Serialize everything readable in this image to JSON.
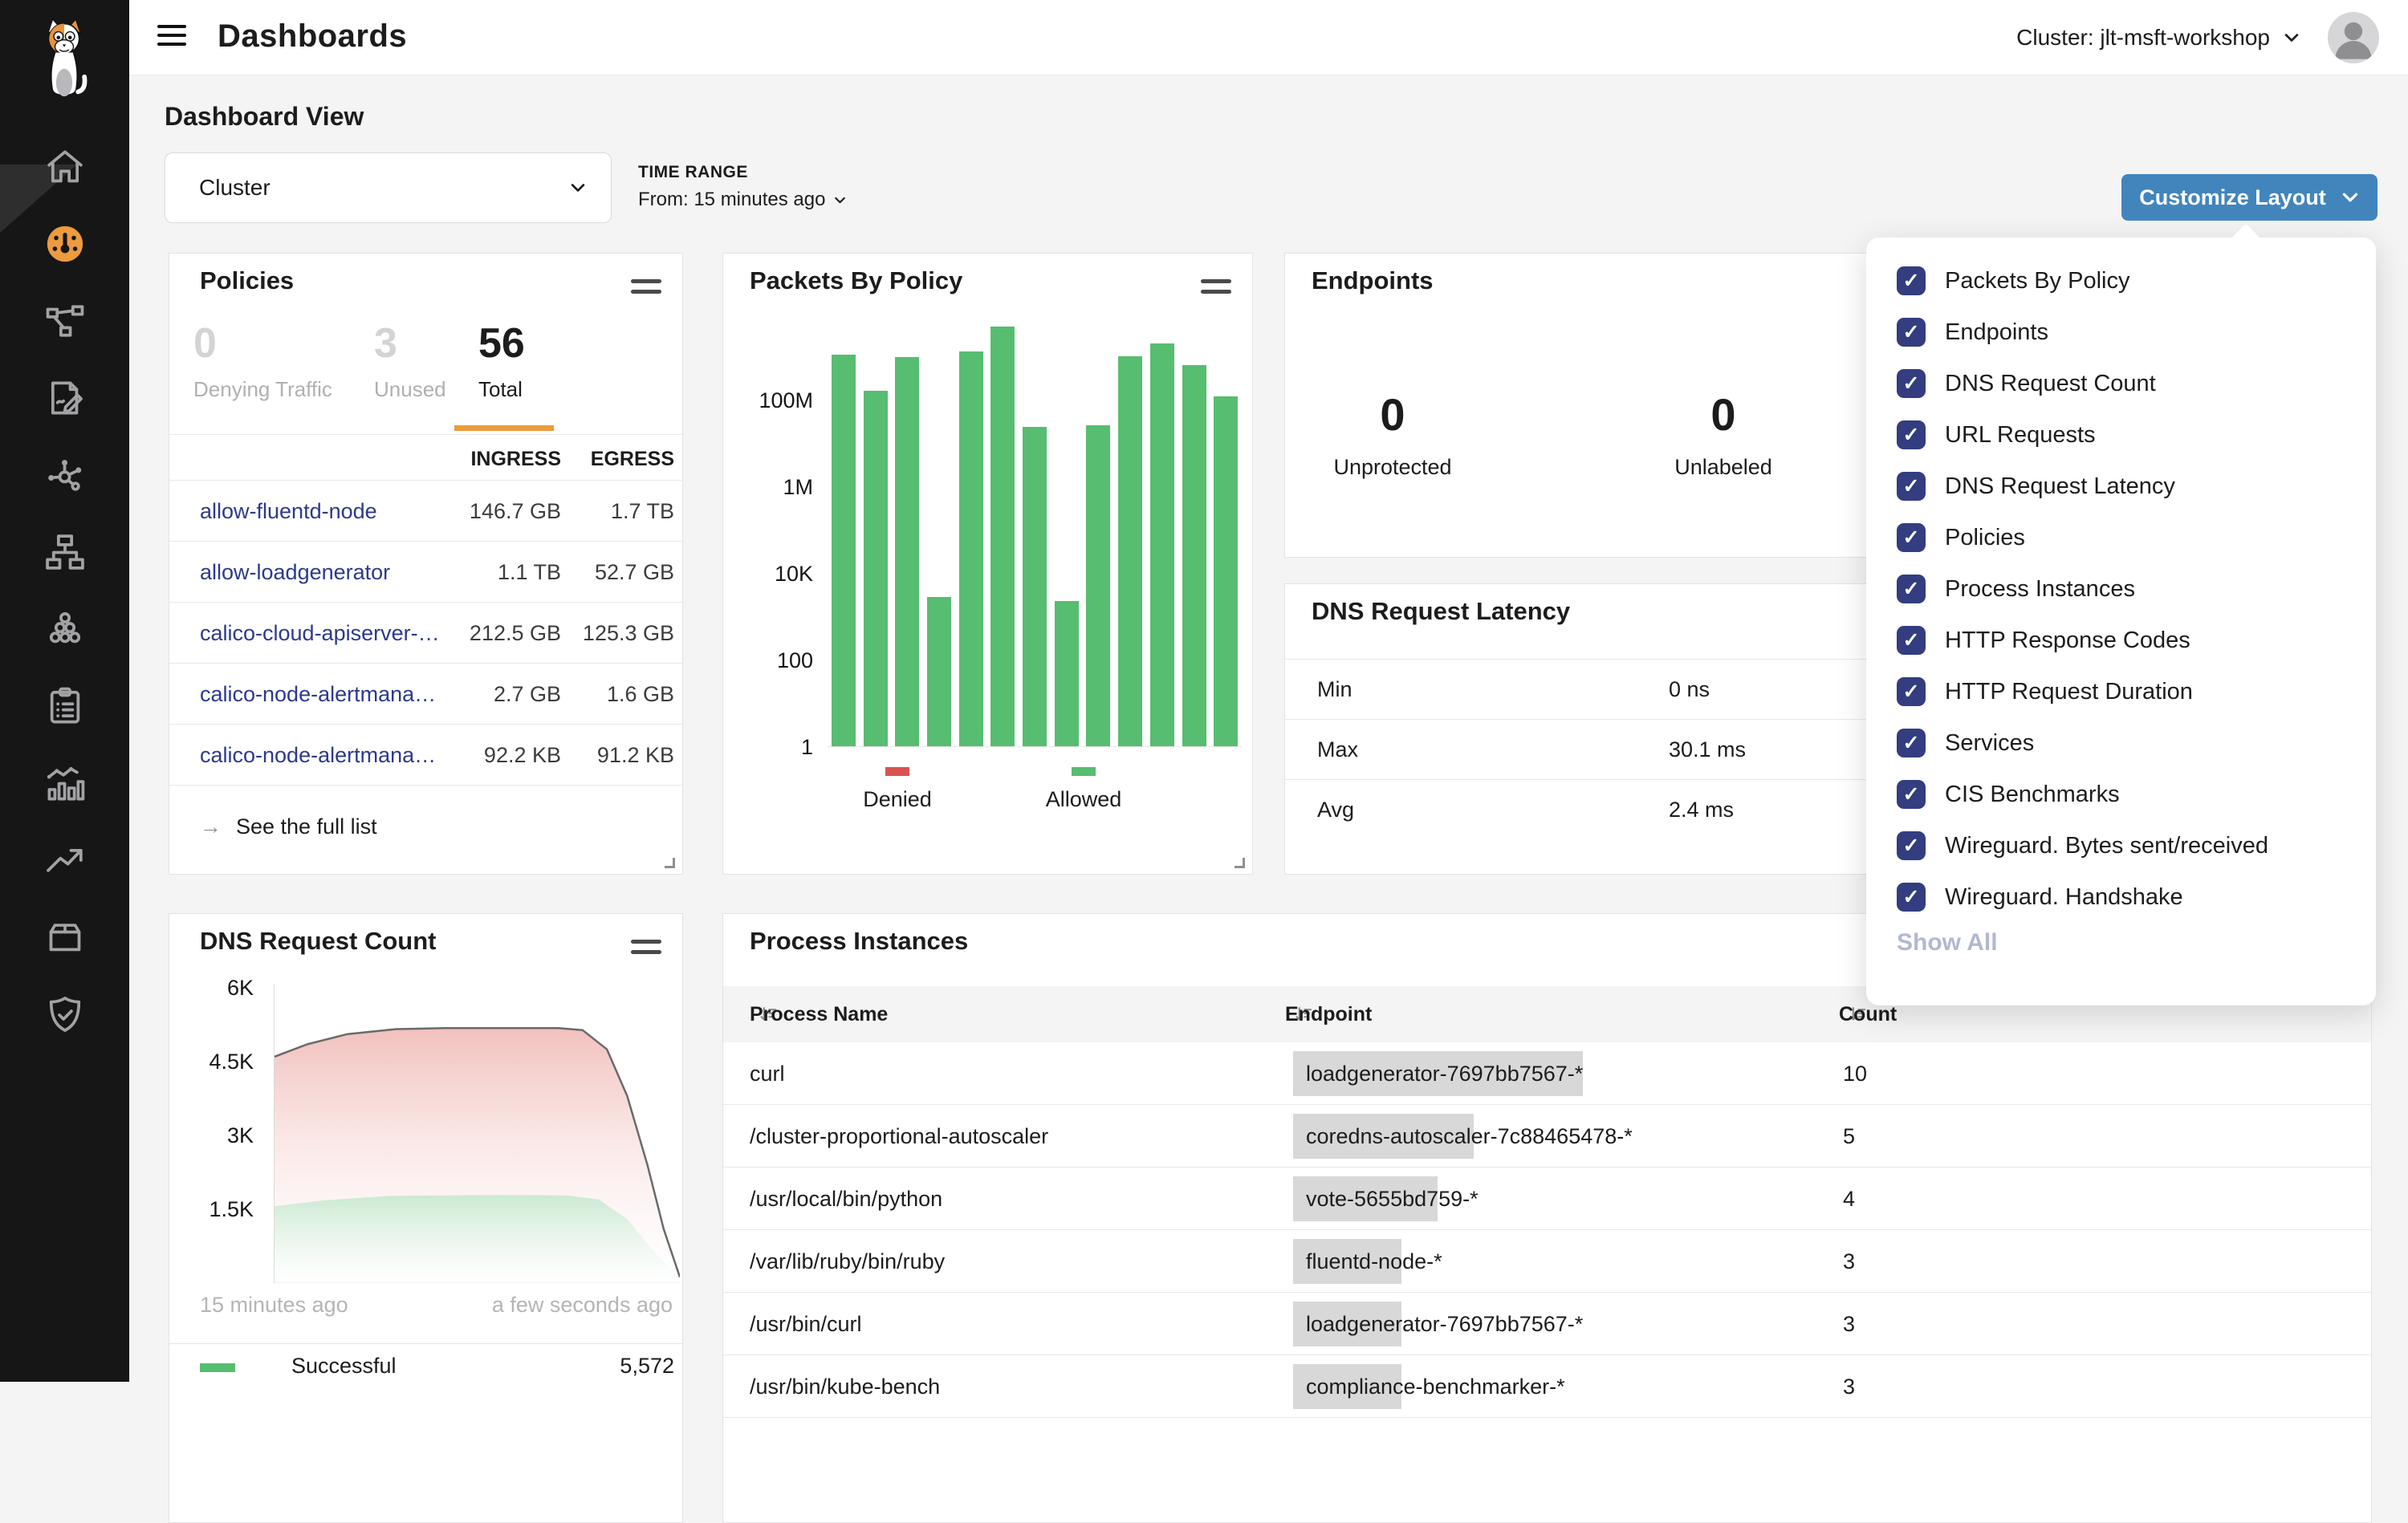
{
  "colors": {
    "accent_orange": "#ec9b3d",
    "button_blue": "#4285bd",
    "checkbox_navy": "#333d80",
    "link_navy": "#2c3a8c",
    "bar_green": "#57bd70",
    "denied_red": "#d9534f"
  },
  "header": {
    "title": "Dashboards",
    "cluster_label": "Cluster: jlt-msft-workshop"
  },
  "toolbar": {
    "section_title": "Dashboard View",
    "view_select_value": "Cluster",
    "time_range_label": "TIME RANGE",
    "time_range_value": "From: 15 minutes ago",
    "customize_button_label": "Customize Layout"
  },
  "sidebar": {
    "items": [
      {
        "icon": "home-icon",
        "active": false
      },
      {
        "icon": "dashboard-icon",
        "active": true
      },
      {
        "icon": "network-path-icon",
        "active": false
      },
      {
        "icon": "policy-edit-icon",
        "active": false
      },
      {
        "icon": "service-graph-icon",
        "active": false
      },
      {
        "icon": "network-tree-icon",
        "active": false
      },
      {
        "icon": "node-cluster-icon",
        "active": false
      },
      {
        "icon": "clipboard-list-icon",
        "active": false
      },
      {
        "icon": "metrics-chart-icon",
        "active": false
      },
      {
        "icon": "trending-up-icon",
        "active": false
      },
      {
        "icon": "package-icon",
        "active": false
      },
      {
        "icon": "shield-check-icon",
        "active": false
      }
    ]
  },
  "customize_menu": {
    "items": [
      "Packets By Policy",
      "Endpoints",
      "DNS Request Count",
      "URL Requests",
      "DNS Request Latency",
      "Policies",
      "Process Instances",
      "HTTP Response Codes",
      "HTTP Request Duration",
      "Services",
      "CIS Benchmarks",
      "Wireguard. Bytes sent/received",
      "Wireguard. Handshake"
    ],
    "show_all_label": "Show All"
  },
  "policies": {
    "title": "Policies",
    "stats": [
      {
        "value": "0",
        "label": "Denying Traffic",
        "muted": true,
        "active": false
      },
      {
        "value": "3",
        "label": "Unused",
        "muted": true,
        "active": false
      },
      {
        "value": "56",
        "label": "Total",
        "muted": false,
        "active": true
      }
    ],
    "columns": [
      "INGRESS",
      "EGRESS"
    ],
    "rows": [
      {
        "name": "allow-fluentd-node",
        "ingress": "146.7 GB",
        "egress": "1.7 TB"
      },
      {
        "name": "allow-loadgenerator",
        "ingress": "1.1 TB",
        "egress": "52.7 GB"
      },
      {
        "name": "calico-cloud-apiserver-…",
        "ingress": "212.5 GB",
        "egress": "125.3 GB"
      },
      {
        "name": "calico-node-alertmana…",
        "ingress": "2.7 GB",
        "egress": "1.6 GB"
      },
      {
        "name": "calico-node-alertmana…",
        "ingress": "92.2 KB",
        "egress": "91.2 KB"
      }
    ],
    "footer_link": "See the full list"
  },
  "endpoints": {
    "title": "Endpoints",
    "stats": [
      {
        "value": "0",
        "label": "Unprotected"
      },
      {
        "value": "0",
        "label": "Unlabeled"
      }
    ]
  },
  "dns_latency": {
    "title": "DNS Request Latency",
    "rows": [
      {
        "label": "Min",
        "value": "0 ns"
      },
      {
        "label": "Max",
        "value": "30.1 ms"
      },
      {
        "label": "Avg",
        "value": "2.4 ms"
      }
    ]
  },
  "dns_count": {
    "legend": [
      {
        "label": "Successful",
        "value": "5,572",
        "color": "#57bd70"
      }
    ]
  },
  "process_instances": {
    "title": "Process Instances",
    "columns": [
      "Process Name",
      "Endpoint",
      "Count"
    ],
    "rows": [
      {
        "process": "curl",
        "endpoint": "loadgenerator-7697bb7567-*",
        "count": 10
      },
      {
        "process": "/cluster-proportional-autoscaler",
        "endpoint": "coredns-autoscaler-7c88465478-*",
        "count": 5
      },
      {
        "process": "/usr/local/bin/python",
        "endpoint": "vote-5655bd759-*",
        "count": 4
      },
      {
        "process": "/var/lib/ruby/bin/ruby",
        "endpoint": "fluentd-node-*",
        "count": 3
      },
      {
        "process": "/usr/bin/curl",
        "endpoint": "loadgenerator-7697bb7567-*",
        "count": 3
      },
      {
        "process": "/usr/bin/kube-bench",
        "endpoint": "compliance-benchmarker-*",
        "count": 3
      }
    ]
  },
  "chart_data": [
    {
      "type": "bar",
      "title": "Packets By Policy",
      "scale": "log",
      "ylim": [
        1,
        10000000000
      ],
      "y_ticks": [
        "1",
        "100",
        "10K",
        "1M",
        "100M"
      ],
      "y_tick_decades": [
        0,
        2,
        4,
        6,
        8
      ],
      "values": [
        1100000000,
        160000000,
        950000000,
        2800,
        1300000000,
        4800000000,
        24000000,
        2300,
        26000000,
        1000000000,
        2000000000,
        620000000,
        120000000
      ],
      "bar_color": "#57bd70",
      "legend": [
        {
          "label": "Denied",
          "color": "#d9534f"
        },
        {
          "label": "Allowed",
          "color": "#57bd70"
        }
      ]
    },
    {
      "type": "area",
      "title": "DNS Request Count",
      "ylim": [
        0,
        6000
      ],
      "y_ticks": [
        "1.5K",
        "3K",
        "4.5K",
        "6K"
      ],
      "y_tick_values": [
        1500,
        3000,
        4500,
        6000
      ],
      "x_labels": [
        "15 minutes ago",
        "a few seconds ago"
      ],
      "series": [
        {
          "name": "total",
          "line_color": "#6a6a6a",
          "fill_top": "#efb5b1",
          "points": [
            [
              0,
              4600
            ],
            [
              0.08,
              4850
            ],
            [
              0.18,
              5060
            ],
            [
              0.3,
              5160
            ],
            [
              0.42,
              5180
            ],
            [
              0.7,
              5180
            ],
            [
              0.76,
              5140
            ],
            [
              0.82,
              4750
            ],
            [
              0.87,
              3800
            ],
            [
              0.92,
              2400
            ],
            [
              0.96,
              1100
            ],
            [
              1,
              120
            ]
          ]
        },
        {
          "name": "successful",
          "line_color": "",
          "fill_top": "#c8e9d0",
          "points": [
            [
              0,
              1560
            ],
            [
              0.12,
              1680
            ],
            [
              0.28,
              1770
            ],
            [
              0.55,
              1790
            ],
            [
              0.72,
              1780
            ],
            [
              0.8,
              1700
            ],
            [
              0.87,
              1300
            ],
            [
              0.93,
              700
            ],
            [
              0.98,
              250
            ],
            [
              1,
              90
            ]
          ]
        }
      ]
    }
  ]
}
